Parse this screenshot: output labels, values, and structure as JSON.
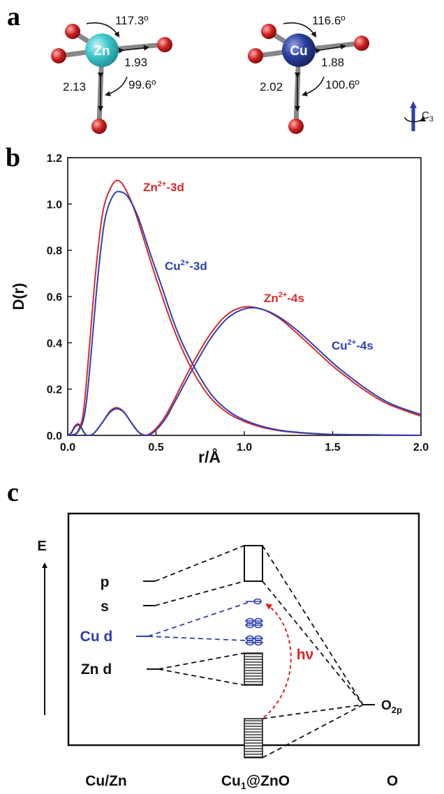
{
  "panel_letters": {
    "a": "a",
    "b": "b",
    "c": "c"
  },
  "panel_a": {
    "zn": {
      "atom": "Zn",
      "angle_top": "117.3º",
      "bond_short": "1.93",
      "bond_long": "2.13",
      "angle_bottom": "99.6º",
      "center_color": "#3cc6cc"
    },
    "cu": {
      "atom": "Cu",
      "angle_top": "116.6º",
      "bond_short": "1.88",
      "bond_long": "2.02",
      "angle_bottom": "100.6º",
      "center_color": "#2a3f9e"
    },
    "oxygen_color": "#cc1f1f",
    "axis_label": "C",
    "axis_subscript": "3"
  },
  "chart_data": {
    "type": "line",
    "xlabel": "r/Å",
    "ylabel": "D(r)",
    "xlim": [
      0,
      2.0
    ],
    "ylim": [
      0,
      1.2
    ],
    "xticks": [
      "0.0",
      "0.5",
      "1.0",
      "1.5",
      "2.0"
    ],
    "yticks": [
      "0.0",
      "0.2",
      "0.4",
      "0.6",
      "0.8",
      "1.0",
      "1.2"
    ],
    "grid": false,
    "series": [
      {
        "name": "Zn2+-3d",
        "color": "#d62a2a",
        "x": [
          0.0,
          0.025,
          0.05,
          0.07,
          0.085,
          0.1,
          0.13,
          0.16,
          0.2,
          0.25,
          0.29,
          0.33,
          0.38,
          0.45,
          0.5,
          0.6,
          0.7,
          0.8,
          0.9,
          1.0,
          1.1,
          1.2,
          1.3,
          1.4,
          1.5,
          1.7,
          2.0
        ],
        "y": [
          0.0,
          0.002,
          0.01,
          0.04,
          0.08,
          0.18,
          0.45,
          0.72,
          0.97,
          1.08,
          1.1,
          1.06,
          0.97,
          0.8,
          0.68,
          0.46,
          0.29,
          0.17,
          0.1,
          0.06,
          0.035,
          0.02,
          0.012,
          0.007,
          0.004,
          0.002,
          0.0
        ]
      },
      {
        "name": "Cu2+-3d",
        "color": "#2d3fb0",
        "x": [
          0.0,
          0.025,
          0.05,
          0.07,
          0.09,
          0.11,
          0.14,
          0.17,
          0.21,
          0.26,
          0.31,
          0.35,
          0.4,
          0.47,
          0.52,
          0.62,
          0.72,
          0.82,
          0.92,
          1.02,
          1.12,
          1.22,
          1.32,
          1.42,
          1.52,
          1.72,
          2.0
        ],
        "y": [
          0.0,
          0.002,
          0.008,
          0.03,
          0.07,
          0.17,
          0.42,
          0.68,
          0.93,
          1.04,
          1.05,
          1.02,
          0.94,
          0.78,
          0.67,
          0.45,
          0.29,
          0.17,
          0.1,
          0.06,
          0.035,
          0.02,
          0.012,
          0.007,
          0.004,
          0.002,
          0.0
        ]
      },
      {
        "name": "Zn2+-4s",
        "color": "#d62a2a",
        "x": [
          0.0,
          0.02,
          0.04,
          0.06,
          0.08,
          0.1,
          0.12,
          0.15,
          0.2,
          0.24,
          0.28,
          0.32,
          0.36,
          0.4,
          0.43,
          0.46,
          0.5,
          0.55,
          0.6,
          0.7,
          0.8,
          0.9,
          1.0,
          1.1,
          1.2,
          1.3,
          1.4,
          1.5,
          1.6,
          1.7,
          1.8,
          1.9,
          2.0
        ],
        "y": [
          0.0,
          0.012,
          0.04,
          0.05,
          0.03,
          0.005,
          0.0,
          0.01,
          0.06,
          0.105,
          0.12,
          0.1,
          0.055,
          0.015,
          0.0,
          0.005,
          0.03,
          0.08,
          0.15,
          0.3,
          0.43,
          0.52,
          0.555,
          0.545,
          0.505,
          0.44,
          0.37,
          0.3,
          0.24,
          0.185,
          0.14,
          0.11,
          0.083
        ]
      },
      {
        "name": "Cu2+-4s",
        "color": "#2d3fb0",
        "x": [
          0.0,
          0.02,
          0.04,
          0.06,
          0.08,
          0.1,
          0.12,
          0.15,
          0.2,
          0.24,
          0.28,
          0.32,
          0.36,
          0.4,
          0.44,
          0.47,
          0.51,
          0.56,
          0.61,
          0.71,
          0.81,
          0.91,
          1.02,
          1.12,
          1.22,
          1.32,
          1.42,
          1.52,
          1.62,
          1.72,
          1.82,
          1.92,
          2.0
        ],
        "y": [
          0.0,
          0.01,
          0.035,
          0.045,
          0.028,
          0.004,
          0.0,
          0.01,
          0.06,
          0.1,
          0.115,
          0.098,
          0.055,
          0.015,
          0.0,
          0.005,
          0.03,
          0.08,
          0.15,
          0.29,
          0.42,
          0.51,
          0.55,
          0.54,
          0.5,
          0.44,
          0.37,
          0.3,
          0.24,
          0.185,
          0.14,
          0.11,
          0.09
        ]
      }
    ],
    "annotations": [
      {
        "base": "Zn",
        "sup": "2+",
        "tail": "-3d",
        "color": "#d62a2a"
      },
      {
        "base": "Cu",
        "sup": "2+",
        "tail": "-3d",
        "color": "#2d3fb0"
      },
      {
        "base": "Zn",
        "sup": "2+",
        "tail": "-4s",
        "color": "#d62a2a"
      },
      {
        "base": "Cu",
        "sup": "2+",
        "tail": "-4s",
        "color": "#2d3fb0"
      }
    ]
  },
  "panel_c": {
    "energy_label": "E",
    "levels": {
      "p": "p",
      "s": "s",
      "cu_d": "Cu d",
      "zn_d": "Zn d"
    },
    "o_label": "O",
    "o_sub": "2p",
    "photon": "hν",
    "x_labels": {
      "left": "Cu/Zn",
      "center_a": "Cu",
      "center_sub": "1",
      "center_b": "@ZnO",
      "right": "O"
    },
    "blue": "#2d3fb0",
    "red": "#e02020"
  }
}
